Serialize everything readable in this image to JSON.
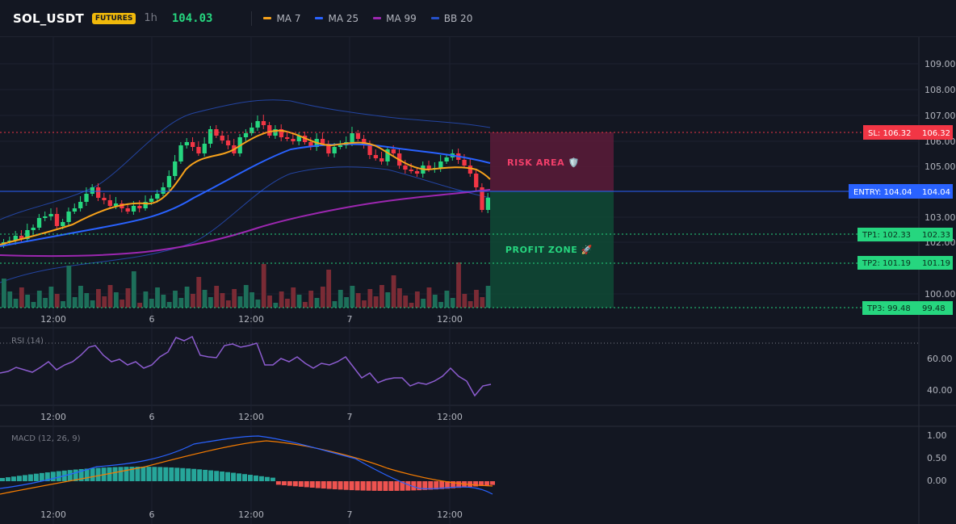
{
  "header": {
    "symbol": "SOL_USDT",
    "badge": "FUTURES",
    "timeframe": "1h",
    "price": "104.03",
    "indicators": [
      {
        "label": "MA 7",
        "color": "#f7a21b"
      },
      {
        "label": "MA 25",
        "color": "#2962ff"
      },
      {
        "label": "MA 99",
        "color": "#9c27b0"
      },
      {
        "label": "BB 20",
        "color": "#1e3a8a"
      }
    ]
  },
  "price_axis": {
    "ticks": [
      "109.00",
      "108.00",
      "107.00",
      "106.00",
      "105.00",
      "103.00",
      "102.00",
      "100.00"
    ]
  },
  "time_axis": {
    "ticks": [
      "12:00",
      "6",
      "12:00",
      "7",
      "12:00"
    ]
  },
  "trade": {
    "sl_label": "SL: 106.32",
    "sl_value": "106.32",
    "entry_label": "ENTRY: 104.04",
    "entry_value": "104.04",
    "tp1_label": "TP1: 102.33",
    "tp1_value": "102.33",
    "tp2_label": "TP2: 101.19",
    "tp2_value": "101.19",
    "tp3_label": "TP3: 99.48",
    "tp3_value": "99.48",
    "risk_label": "RISK AREA 🛡️",
    "profit_label": "PROFIT ZONE 🚀",
    "colors": {
      "sl": "#f23645",
      "entry": "#2962ff",
      "tp": "#26d67f"
    }
  },
  "rsi": {
    "title": "RSI (14)",
    "ticks": [
      "60.00",
      "40.00"
    ]
  },
  "macd": {
    "title": "MACD (12, 26, 9)",
    "ticks": [
      "1.00",
      "0.50",
      "0.00"
    ]
  }
}
